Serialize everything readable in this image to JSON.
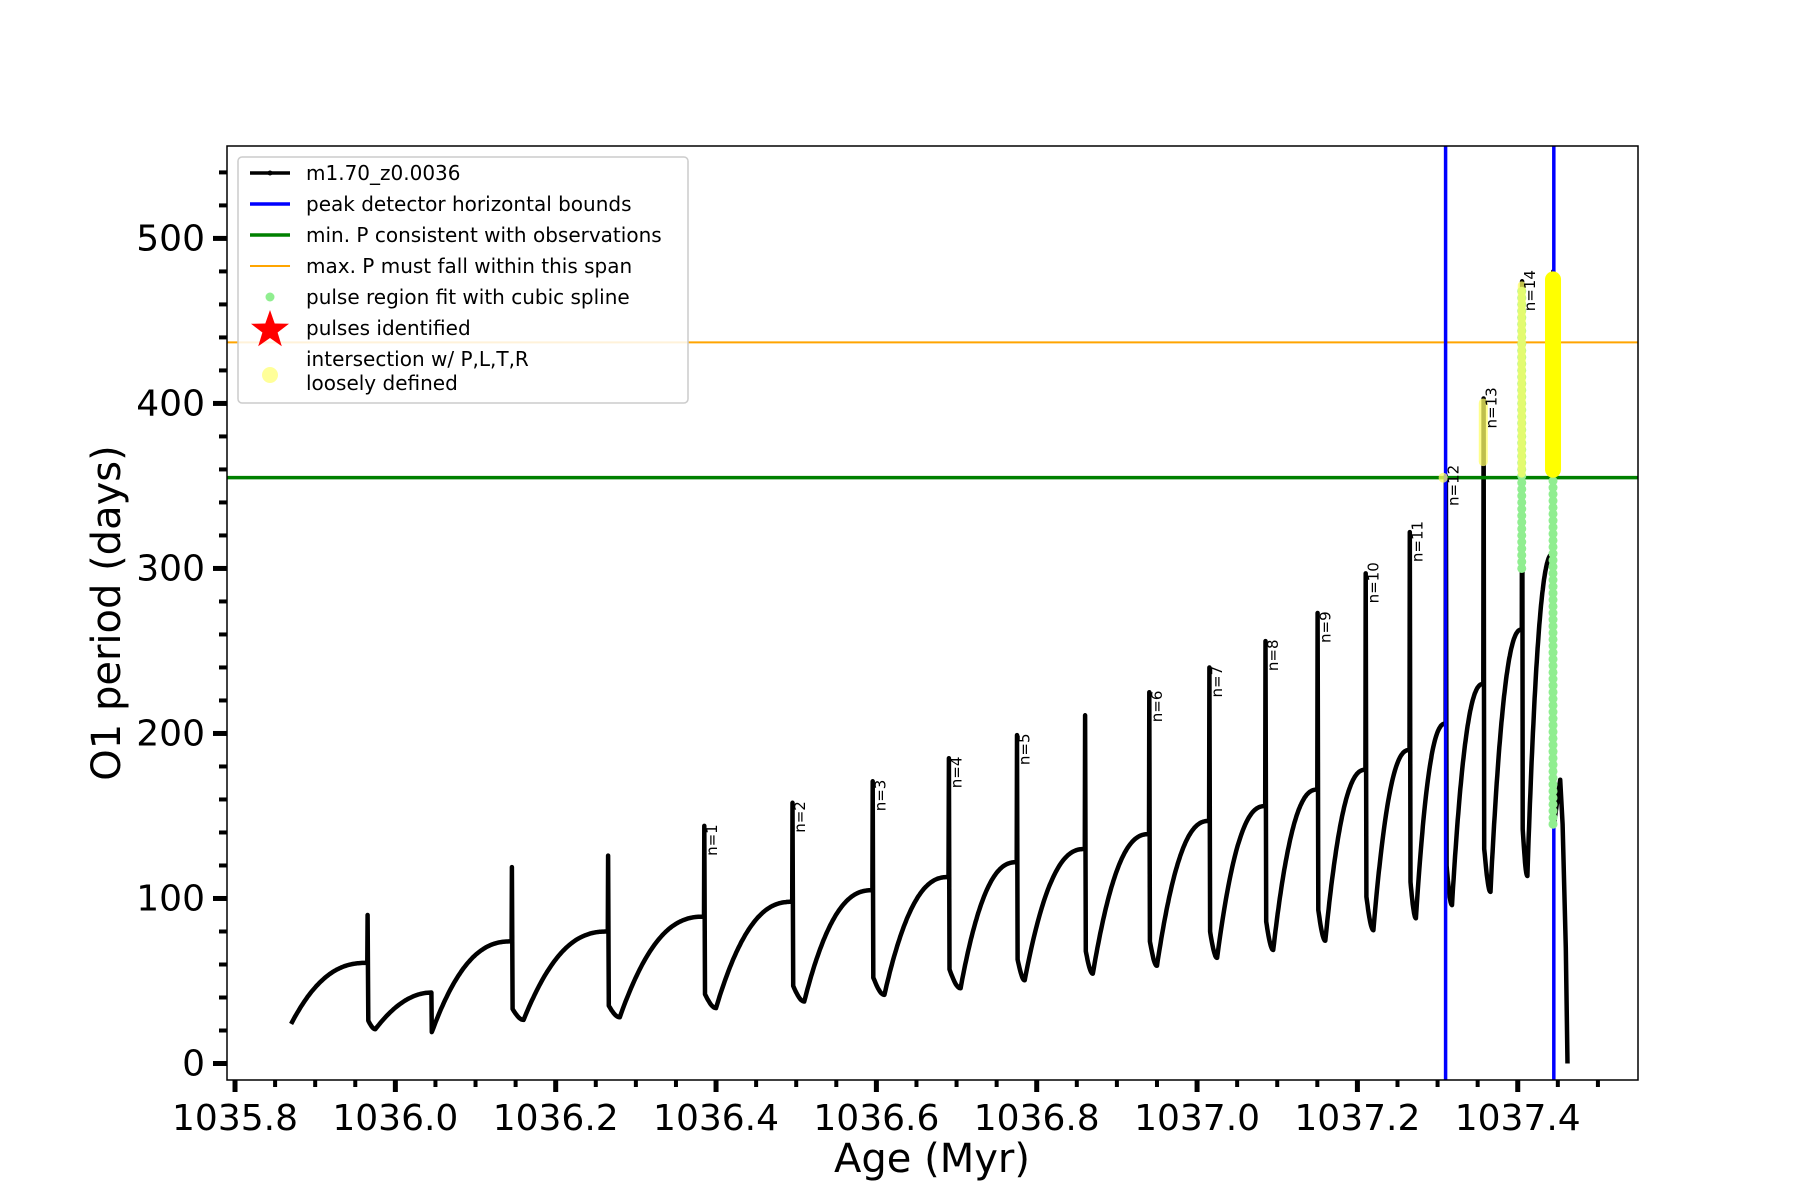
{
  "chart_data": {
    "type": "line",
    "title": "",
    "xlabel": "Age (Myr)",
    "ylabel": "O1 period (days)",
    "xlim": [
      1035.79,
      1037.55
    ],
    "ylim": [
      -10,
      556
    ],
    "x_ticks": [
      1035.8,
      1036.0,
      1036.2,
      1036.4,
      1036.6,
      1036.8,
      1037.0,
      1037.2,
      1037.4
    ],
    "x_tick_labels": [
      "1035.8",
      "1036.0",
      "1036.2",
      "1036.4",
      "1036.6",
      "1036.8",
      "1037.0",
      "1037.2",
      "1037.4"
    ],
    "y_ticks": [
      0,
      100,
      200,
      300,
      400,
      500
    ],
    "y_tick_labels": [
      "0",
      "100",
      "200",
      "300",
      "400",
      "500"
    ],
    "grid": false,
    "legend": {
      "position": "top-left",
      "entries": [
        {
          "label": "m1.70_z0.0036",
          "color": "#000000",
          "marker": "line-dot"
        },
        {
          "label": "peak detector horizontal bounds",
          "color": "#0000ff",
          "marker": "line"
        },
        {
          "label": "min. P consistent with observations",
          "color": "#008000",
          "marker": "line"
        },
        {
          "label": "max. P must fall within this span",
          "color": "#ffa500",
          "marker": "line"
        },
        {
          "label": "pulse region fit with cubic spline",
          "color": "#90ee90",
          "marker": "dot"
        },
        {
          "label": "pulses identified",
          "color": "#ff0000",
          "marker": "star"
        },
        {
          "label": "intersection w/ P,L,T,R",
          "label2": "loosely defined",
          "color": "#ffff99",
          "marker": "circle"
        }
      ]
    },
    "reference_lines": {
      "vertical": [
        {
          "x": 1037.31,
          "color": "#0000ff"
        },
        {
          "x": 1037.445,
          "color": "#0000ff"
        }
      ],
      "horizontal": [
        {
          "y": 355,
          "color": "#008000",
          "label": "min. P consistent with observations"
        },
        {
          "y": 437,
          "color": "#ffa500",
          "label": "max. P must fall within this span"
        }
      ]
    },
    "series": [
      {
        "name": "m1.70_z0.0036",
        "color": "#000000",
        "start": {
          "x": 1035.87,
          "y": 24
        },
        "cycles": [
          {
            "x_peak": 1035.965,
            "plateau": 61,
            "peak": 90,
            "trough": 26,
            "x_min": 1035.975,
            "x_end": 1036.045,
            "end_val": 43
          },
          {
            "x_peak": 1036.145,
            "plateau": 74,
            "peak": 119,
            "trough": 33,
            "x_min": 1036.16,
            "x_end": 1036.26
          },
          {
            "x_peak": 1036.265,
            "plateau": 80,
            "peak": 126,
            "trough": 35,
            "x_min": 1036.28,
            "x_end": 1036.38
          },
          {
            "x_peak": 1036.385,
            "plateau": 89,
            "peak": 144,
            "trough": 42,
            "x_min": 1036.4,
            "x_end": 1036.49
          },
          {
            "x_peak": 1036.495,
            "plateau": 98,
            "peak": 158,
            "trough": 47,
            "x_min": 1036.51,
            "x_end": 1036.59
          },
          {
            "x_peak": 1036.595,
            "plateau": 105,
            "peak": 171,
            "trough": 52,
            "x_min": 1036.61,
            "x_end": 1036.685
          },
          {
            "x_peak": 1036.69,
            "plateau": 113,
            "peak": 185,
            "trough": 57,
            "x_min": 1036.705,
            "x_end": 1036.77
          },
          {
            "x_peak": 1036.775,
            "plateau": 122,
            "peak": 199,
            "trough": 63,
            "x_min": 1036.785,
            "x_end": 1036.855
          },
          {
            "x_peak": 1036.86,
            "plateau": 130,
            "peak": 211,
            "trough": 68,
            "x_min": 1036.87,
            "x_end": 1036.935
          },
          {
            "x_peak": 1036.94,
            "plateau": 139,
            "peak": 225,
            "trough": 74,
            "x_min": 1036.95,
            "x_end": 1037.01
          },
          {
            "x_peak": 1037.015,
            "plateau": 147,
            "peak": 240,
            "trough": 80,
            "x_min": 1037.025,
            "x_end": 1037.08
          },
          {
            "x_peak": 1037.085,
            "plateau": 156,
            "peak": 256,
            "trough": 86,
            "x_min": 1037.095,
            "x_end": 1037.145
          },
          {
            "x_peak": 1037.15,
            "plateau": 166,
            "peak": 273,
            "trough": 93,
            "x_min": 1037.16,
            "x_end": 1037.205
          },
          {
            "x_peak": 1037.21,
            "plateau": 178,
            "peak": 297,
            "trough": 101,
            "x_min": 1037.22,
            "x_end": 1037.262
          },
          {
            "x_peak": 1037.265,
            "plateau": 190,
            "peak": 322,
            "trough": 110,
            "x_min": 1037.273,
            "x_end": 1037.308
          },
          {
            "x_peak": 1037.31,
            "plateau": 206,
            "peak": 356,
            "trough": 120,
            "x_min": 1037.318,
            "x_end": 1037.353
          },
          {
            "x_peak": 1037.357,
            "plateau": 230,
            "peak": 403,
            "trough": 130,
            "x_min": 1037.366,
            "x_end": 1037.401
          },
          {
            "x_peak": 1037.405,
            "plateau": 263,
            "peak": 474,
            "trough": 142,
            "x_min": 1037.412,
            "x_end": 1037.44
          },
          {
            "x_peak": 1037.444,
            "plateau": 309,
            "peak": 480,
            "trough": 145,
            "x_min": 1037.448
          }
        ],
        "tail": [
          [
            1037.453,
            172
          ],
          [
            1037.456,
            145
          ],
          [
            1037.46,
            70
          ],
          [
            1037.462,
            0
          ]
        ]
      }
    ],
    "spline_regions": [
      {
        "x": 1037.405,
        "y_from": 300,
        "y_to": 470
      },
      {
        "x": 1037.444,
        "y_from": 145,
        "y_to": 355
      }
    ],
    "loose_intersections": [
      {
        "x": 1037.307,
        "y_from": 352,
        "y_to": 358
      },
      {
        "x": 1037.357,
        "y_from": 362,
        "y_to": 403
      },
      {
        "x": 1037.405,
        "y_from": 355,
        "y_to": 474
      },
      {
        "x": 1037.444,
        "y_from": 355,
        "y_to": 480
      }
    ],
    "annotations": [
      {
        "text": "n=1",
        "x": 1036.385,
        "y": 144
      },
      {
        "text": "n=2",
        "x": 1036.495,
        "y": 158
      },
      {
        "text": "n=3",
        "x": 1036.595,
        "y": 171
      },
      {
        "text": "n=4",
        "x": 1036.69,
        "y": 185
      },
      {
        "text": "n=5",
        "x": 1036.775,
        "y": 199
      },
      {
        "text": "n=6",
        "x": 1036.94,
        "y": 225
      },
      {
        "text": "n=7",
        "x": 1037.015,
        "y": 240
      },
      {
        "text": "n=8",
        "x": 1037.085,
        "y": 256
      },
      {
        "text": "n=9",
        "x": 1037.15,
        "y": 273
      },
      {
        "text": "n=10",
        "x": 1037.21,
        "y": 297
      },
      {
        "text": "n=11",
        "x": 1037.265,
        "y": 322
      },
      {
        "text": "n=12",
        "x": 1037.31,
        "y": 356
      },
      {
        "text": "n=13",
        "x": 1037.357,
        "y": 403
      },
      {
        "text": "n=14",
        "x": 1037.405,
        "y": 474
      }
    ]
  }
}
